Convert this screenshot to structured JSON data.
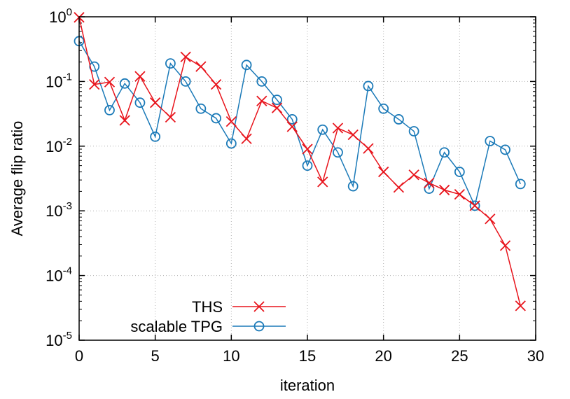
{
  "chart_data": {
    "type": "line",
    "title": "",
    "xlabel": "iteration",
    "ylabel": "Average flip ratio",
    "xlim": [
      0,
      30
    ],
    "ylim": [
      1e-05,
      1
    ],
    "yscale": "log",
    "x_ticks": [
      0,
      5,
      10,
      15,
      20,
      25,
      30
    ],
    "y_ticks": [
      {
        "value": 1e-05,
        "base": "10",
        "exp": "-5"
      },
      {
        "value": 0.0001,
        "base": "10",
        "exp": "-4"
      },
      {
        "value": 0.001,
        "base": "10",
        "exp": "-3"
      },
      {
        "value": 0.01,
        "base": "10",
        "exp": "-2"
      },
      {
        "value": 0.1,
        "base": "10",
        "exp": "-1"
      },
      {
        "value": 1,
        "base": "10",
        "exp": "0"
      }
    ],
    "grid": true,
    "legend_position": "bottom-left",
    "x": [
      0,
      1,
      2,
      3,
      4,
      5,
      6,
      7,
      8,
      9,
      10,
      11,
      12,
      13,
      14,
      15,
      16,
      17,
      18,
      19,
      20,
      21,
      22,
      23,
      24,
      25,
      26,
      27,
      28,
      29
    ],
    "series": [
      {
        "name": "THS",
        "color": "#e8141c",
        "marker": "x",
        "values": [
          0.98,
          0.09,
          0.098,
          0.025,
          0.12,
          0.047,
          0.028,
          0.24,
          0.17,
          0.09,
          0.024,
          0.013,
          0.05,
          0.039,
          0.02,
          0.009,
          0.0028,
          0.019,
          0.015,
          0.0092,
          0.004,
          0.0023,
          0.0036,
          0.0027,
          0.0021,
          0.0018,
          0.0012,
          0.00075,
          0.00029,
          3.4e-05
        ]
      },
      {
        "name": "scalable TPG",
        "color": "#1b7ab8",
        "marker": "o",
        "values": [
          0.42,
          0.17,
          0.036,
          0.093,
          0.047,
          0.014,
          0.19,
          0.1,
          0.038,
          0.027,
          0.011,
          0.18,
          0.1,
          0.052,
          0.026,
          0.005,
          0.018,
          0.008,
          0.0024,
          0.085,
          0.038,
          0.026,
          0.017,
          0.0022,
          0.008,
          0.004,
          0.0012,
          0.012,
          0.0088,
          0.0026
        ]
      }
    ]
  }
}
